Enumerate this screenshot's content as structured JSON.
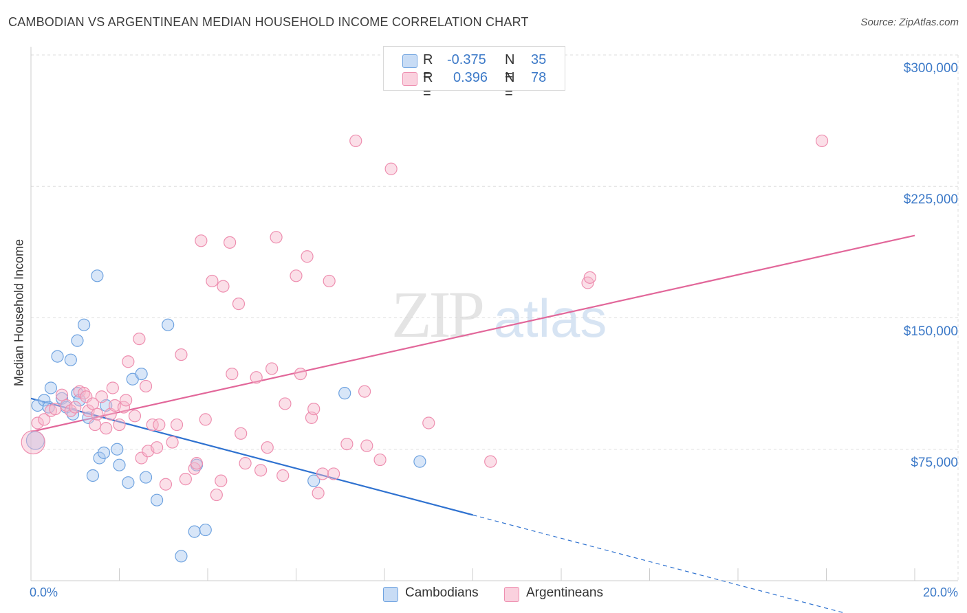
{
  "title": "CAMBODIAN VS ARGENTINEAN MEDIAN HOUSEHOLD INCOME CORRELATION CHART",
  "source": "Source: ZipAtlas.com",
  "watermark": {
    "zip": "ZIP",
    "atlas": "atlas"
  },
  "legend": {
    "rows": [
      {
        "r_label": "R =",
        "r_value": "-0.375",
        "n_label": "N =",
        "n_value": "35",
        "color": "#a8c8f0"
      },
      {
        "r_label": "R =",
        "r_value": "0.396",
        "n_label": "N =",
        "n_value": "78",
        "color": "#f6b8cb"
      }
    ]
  },
  "bottom_legend": [
    {
      "label": "Cambodians",
      "color": "#a8c8f0"
    },
    {
      "label": "Argentineans",
      "color": "#f6b8cb"
    }
  ],
  "chart_data": {
    "type": "scatter",
    "ylabel": "Median Household Income",
    "xlim": [
      0,
      20
    ],
    "ylim": [
      0,
      300000
    ],
    "x_tick_labels": [
      "0.0%",
      "20.0%"
    ],
    "y_ticks": [
      {
        "value": 75000,
        "label": "$75,000"
      },
      {
        "value": 150000,
        "label": "$150,000"
      },
      {
        "value": 225000,
        "label": "$225,000"
      },
      {
        "value": 300000,
        "label": "$300,000"
      }
    ],
    "grid": true,
    "series": [
      {
        "name": "Cambodians",
        "color": "#6fa3e0",
        "fill": "#a8c8f0",
        "trend": {
          "x0": 0,
          "y0": 104000,
          "x1": 10,
          "y1": 37500,
          "dash_to_x": 18.5
        },
        "points": [
          [
            0.1,
            80000
          ],
          [
            0.15,
            100000
          ],
          [
            0.3,
            103000
          ],
          [
            0.4,
            99000
          ],
          [
            0.45,
            110000
          ],
          [
            0.6,
            128000
          ],
          [
            0.7,
            104000
          ],
          [
            0.8,
            99000
          ],
          [
            0.9,
            126000
          ],
          [
            0.95,
            95000
          ],
          [
            1.05,
            107000
          ],
          [
            1.05,
            137000
          ],
          [
            1.1,
            103000
          ],
          [
            1.2,
            146000
          ],
          [
            1.3,
            93000
          ],
          [
            1.4,
            60000
          ],
          [
            1.5,
            174000
          ],
          [
            1.55,
            70000
          ],
          [
            1.65,
            73000
          ],
          [
            1.7,
            100000
          ],
          [
            1.95,
            75000
          ],
          [
            2.0,
            66000
          ],
          [
            2.2,
            56000
          ],
          [
            2.3,
            115000
          ],
          [
            2.5,
            118000
          ],
          [
            2.6,
            59000
          ],
          [
            2.85,
            46000
          ],
          [
            3.1,
            146000
          ],
          [
            3.4,
            14000
          ],
          [
            3.7,
            28000
          ],
          [
            3.75,
            66000
          ],
          [
            3.95,
            29000
          ],
          [
            6.4,
            57000
          ],
          [
            7.1,
            107000
          ],
          [
            8.8,
            68000
          ]
        ]
      },
      {
        "name": "Argentineans",
        "color": "#ee8fb0",
        "fill": "#f6b8cb",
        "trend": {
          "x0": 0,
          "y0": 85000,
          "x1": 20,
          "y1": 197000
        },
        "points": [
          [
            0.05,
            79000
          ],
          [
            0.15,
            90000
          ],
          [
            0.3,
            92000
          ],
          [
            0.45,
            97000
          ],
          [
            0.55,
            98000
          ],
          [
            0.7,
            106000
          ],
          [
            0.8,
            100000
          ],
          [
            0.9,
            97000
          ],
          [
            1.0,
            99000
          ],
          [
            1.1,
            108000
          ],
          [
            1.2,
            107000
          ],
          [
            1.25,
            105000
          ],
          [
            1.3,
            97000
          ],
          [
            1.4,
            101000
          ],
          [
            1.45,
            89000
          ],
          [
            1.5,
            95000
          ],
          [
            1.6,
            105000
          ],
          [
            1.7,
            87000
          ],
          [
            1.8,
            95000
          ],
          [
            1.85,
            110000
          ],
          [
            1.9,
            100000
          ],
          [
            2.0,
            89000
          ],
          [
            2.1,
            99000
          ],
          [
            2.15,
            103000
          ],
          [
            2.2,
            125000
          ],
          [
            2.35,
            94000
          ],
          [
            2.45,
            138000
          ],
          [
            2.5,
            70000
          ],
          [
            2.6,
            111000
          ],
          [
            2.65,
            74000
          ],
          [
            2.75,
            89000
          ],
          [
            2.85,
            76000
          ],
          [
            2.9,
            89000
          ],
          [
            3.05,
            55000
          ],
          [
            3.2,
            79000
          ],
          [
            3.3,
            89000
          ],
          [
            3.4,
            129000
          ],
          [
            3.5,
            58000
          ],
          [
            3.7,
            64000
          ],
          [
            3.75,
            67000
          ],
          [
            3.85,
            194000
          ],
          [
            3.95,
            92000
          ],
          [
            4.1,
            171000
          ],
          [
            4.2,
            49000
          ],
          [
            4.3,
            57000
          ],
          [
            4.35,
            168000
          ],
          [
            4.5,
            193000
          ],
          [
            4.55,
            118000
          ],
          [
            4.7,
            158000
          ],
          [
            4.75,
            84000
          ],
          [
            4.85,
            67000
          ],
          [
            5.1,
            116000
          ],
          [
            5.2,
            63000
          ],
          [
            5.35,
            76000
          ],
          [
            5.45,
            121000
          ],
          [
            5.55,
            196000
          ],
          [
            5.7,
            60000
          ],
          [
            5.75,
            101000
          ],
          [
            6.0,
            174000
          ],
          [
            6.1,
            118000
          ],
          [
            6.25,
            185000
          ],
          [
            6.35,
            93000
          ],
          [
            6.4,
            98000
          ],
          [
            6.5,
            50000
          ],
          [
            6.6,
            61000
          ],
          [
            6.75,
            171000
          ],
          [
            6.85,
            61000
          ],
          [
            7.15,
            78000
          ],
          [
            7.35,
            251000
          ],
          [
            7.55,
            108000
          ],
          [
            7.6,
            77000
          ],
          [
            7.9,
            69000
          ],
          [
            8.15,
            235000
          ],
          [
            9.0,
            90000
          ],
          [
            10.4,
            68000
          ],
          [
            12.6,
            170000
          ],
          [
            12.65,
            173000
          ],
          [
            17.9,
            251000
          ]
        ]
      }
    ]
  }
}
